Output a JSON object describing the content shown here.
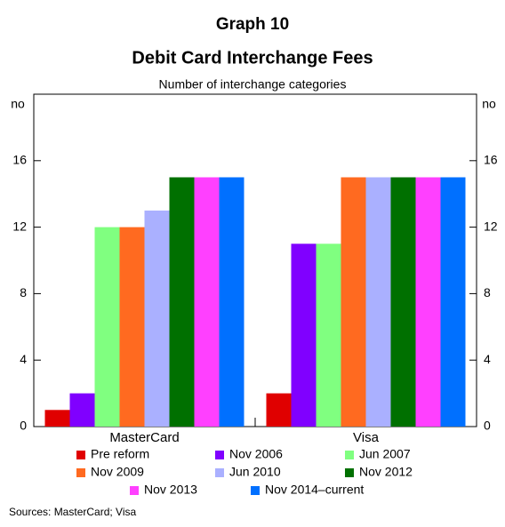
{
  "chart_data": {
    "type": "bar",
    "title": "Graph 10",
    "subtitle": "Debit Card Interchange Fees",
    "y_label": "Number of interchange categories",
    "y_unit": "no",
    "y2_unit": "no",
    "categories": [
      "MasterCard",
      "Visa"
    ],
    "series": [
      {
        "name": "Pre reform",
        "color": "#e00000",
        "values": [
          1,
          2
        ]
      },
      {
        "name": "Nov 2006",
        "color": "#8000ff",
        "values": [
          2,
          11
        ]
      },
      {
        "name": "Jun 2007",
        "color": "#80ff80",
        "values": [
          12,
          11
        ]
      },
      {
        "name": "Nov 2009",
        "color": "#ff6a20",
        "values": [
          12,
          15
        ]
      },
      {
        "name": "Jun 2010",
        "color": "#aab0ff",
        "values": [
          13,
          15
        ]
      },
      {
        "name": "Nov 2012",
        "color": "#007000",
        "values": [
          15,
          15
        ]
      },
      {
        "name": "Nov 2013",
        "color": "#ff40ff",
        "values": [
          15,
          15
        ]
      },
      {
        "name": "Nov 2014–current",
        "color": "#0070ff",
        "values": [
          15,
          15
        ]
      }
    ],
    "ylim": [
      0,
      20
    ],
    "yticks": [
      0,
      4,
      8,
      12,
      16
    ],
    "y2lim": [
      0,
      20
    ],
    "y2ticks": [
      0,
      4,
      8,
      12,
      16
    ],
    "grid": false,
    "legend": "bottom",
    "note": "Sources: MasterCard; Visa"
  }
}
